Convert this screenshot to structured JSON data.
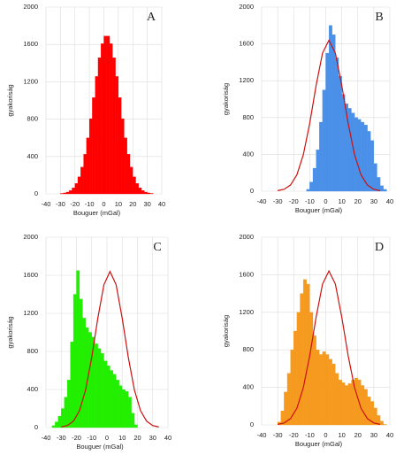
{
  "chart_data": [
    {
      "type": "histogram",
      "label": "A",
      "color": "#ff0000",
      "xlabel": "Bouguer (mGal)",
      "ylabel": "gyakoriság",
      "xlim": [
        -40,
        40
      ],
      "ylim": [
        0,
        2000
      ],
      "xticks": [
        -40,
        -30,
        -20,
        -10,
        0,
        10,
        20,
        30,
        40
      ],
      "yticks": [
        0,
        400,
        800,
        1200,
        1600,
        2000
      ],
      "grid": true,
      "bins": [
        -40,
        -38,
        -36,
        -34,
        -32,
        -30,
        -28,
        -26,
        -24,
        -22,
        -20,
        -18,
        -16,
        -14,
        -12,
        -10,
        -8,
        -6,
        -4,
        -2,
        0,
        2,
        4,
        6,
        8,
        10,
        12,
        14,
        16,
        18,
        20,
        22,
        24,
        26,
        28,
        30,
        32,
        34,
        36,
        38,
        40
      ],
      "values": [
        0,
        0,
        0,
        0,
        0,
        5,
        10,
        19,
        36,
        65,
        112,
        183,
        286,
        424,
        599,
        805,
        1031,
        1257,
        1458,
        1608,
        1690,
        1690,
        1608,
        1458,
        1257,
        1031,
        805,
        599,
        424,
        286,
        183,
        112,
        65,
        36,
        19,
        10,
        5,
        0,
        0,
        0
      ]
    },
    {
      "type": "histogram",
      "label": "B",
      "color": "#4a90e8",
      "xlabel": "Bouguer (mGal)",
      "ylabel": "gyakoriság",
      "xlim": [
        -40,
        40
      ],
      "ylim": [
        0,
        2000
      ],
      "xticks": [
        -40,
        -30,
        -20,
        -10,
        0,
        10,
        20,
        30,
        40
      ],
      "yticks": [
        0,
        400,
        800,
        1200,
        1600,
        2000
      ],
      "grid": true,
      "bins": [
        -40,
        -38,
        -36,
        -34,
        -32,
        -30,
        -28,
        -26,
        -24,
        -22,
        -20,
        -18,
        -16,
        -14,
        -12,
        -10,
        -8,
        -6,
        -4,
        -2,
        0,
        2,
        4,
        6,
        8,
        10,
        12,
        14,
        16,
        18,
        20,
        22,
        24,
        26,
        28,
        30,
        32,
        34,
        36,
        38,
        40
      ],
      "values": [
        0,
        0,
        0,
        0,
        0,
        0,
        0,
        0,
        0,
        0,
        0,
        0,
        0,
        0,
        20,
        100,
        250,
        450,
        750,
        1100,
        1500,
        1800,
        1700,
        1450,
        1250,
        1050,
        950,
        900,
        850,
        800,
        780,
        750,
        720,
        650,
        550,
        300,
        150,
        60,
        20,
        0
      ],
      "curve": {
        "color": "#cc1111",
        "x": [
          -30,
          -26,
          -22,
          -18,
          -14,
          -10,
          -6,
          -2,
          2,
          6,
          10,
          14,
          18,
          22,
          26,
          30,
          34
        ],
        "values": [
          6,
          21,
          67,
          178,
          396,
          737,
          1149,
          1501,
          1640,
          1501,
          1149,
          737,
          396,
          178,
          67,
          21,
          6
        ]
      }
    },
    {
      "type": "histogram",
      "label": "C",
      "color": "#22ee00",
      "xlabel": "Bouguer (mGal)",
      "ylabel": "gyakoriság",
      "xlim": [
        -40,
        40
      ],
      "ylim": [
        0,
        2000
      ],
      "xticks": [
        -40,
        -30,
        -20,
        -10,
        0,
        10,
        20,
        30,
        40
      ],
      "yticks": [
        0,
        400,
        800,
        1200,
        1600,
        2000
      ],
      "grid": true,
      "bins": [
        -40,
        -38,
        -36,
        -34,
        -32,
        -30,
        -28,
        -26,
        -24,
        -22,
        -20,
        -18,
        -16,
        -14,
        -12,
        -10,
        -8,
        -6,
        -4,
        -2,
        0,
        2,
        4,
        6,
        8,
        10,
        12,
        14,
        16,
        18,
        20,
        22,
        24,
        26,
        28,
        30,
        32,
        34,
        36,
        38,
        40
      ],
      "values": [
        0,
        0,
        20,
        60,
        120,
        200,
        320,
        500,
        900,
        1400,
        1650,
        1350,
        1150,
        1050,
        1000,
        950,
        880,
        830,
        780,
        700,
        650,
        600,
        560,
        500,
        440,
        400,
        380,
        320,
        150,
        30,
        0,
        0,
        0,
        0,
        0,
        0,
        0,
        0,
        0,
        0
      ],
      "curve": {
        "color": "#cc1111",
        "x": [
          -30,
          -26,
          -22,
          -18,
          -14,
          -10,
          -6,
          -2,
          2,
          6,
          10,
          14,
          18,
          22,
          26,
          30,
          34
        ],
        "values": [
          6,
          21,
          67,
          178,
          396,
          737,
          1149,
          1501,
          1640,
          1501,
          1149,
          737,
          396,
          178,
          67,
          21,
          6
        ]
      }
    },
    {
      "type": "histogram",
      "label": "D",
      "color": "#f59a1e",
      "xlabel": "Bouguer (mGal)",
      "ylabel": "gyakoriság",
      "xlim": [
        -40,
        40
      ],
      "ylim": [
        0,
        2000
      ],
      "xticks": [
        -40,
        -30,
        -20,
        -10,
        0,
        10,
        20,
        30,
        40
      ],
      "yticks": [
        0,
        400,
        800,
        1200,
        1600,
        2000
      ],
      "grid": true,
      "bins": [
        -40,
        -38,
        -36,
        -34,
        -32,
        -30,
        -28,
        -26,
        -24,
        -22,
        -20,
        -18,
        -16,
        -14,
        -12,
        -10,
        -8,
        -6,
        -4,
        -2,
        0,
        2,
        4,
        6,
        8,
        10,
        12,
        14,
        16,
        18,
        20,
        22,
        24,
        26,
        28,
        30,
        32,
        34,
        36,
        38,
        40
      ],
      "values": [
        0,
        0,
        0,
        0,
        0,
        30,
        150,
        350,
        550,
        800,
        1000,
        1200,
        1400,
        1550,
        1500,
        1200,
        950,
        800,
        750,
        780,
        750,
        700,
        650,
        550,
        480,
        450,
        420,
        440,
        480,
        500,
        480,
        420,
        380,
        300,
        250,
        180,
        100,
        40,
        5,
        0
      ],
      "curve": {
        "color": "#cc1111",
        "x": [
          -30,
          -26,
          -22,
          -18,
          -14,
          -10,
          -6,
          -2,
          2,
          6,
          10,
          14,
          18,
          22,
          26,
          30,
          34
        ],
        "values": [
          6,
          21,
          67,
          178,
          396,
          737,
          1149,
          1501,
          1640,
          1501,
          1149,
          737,
          396,
          178,
          67,
          21,
          6
        ]
      }
    }
  ]
}
